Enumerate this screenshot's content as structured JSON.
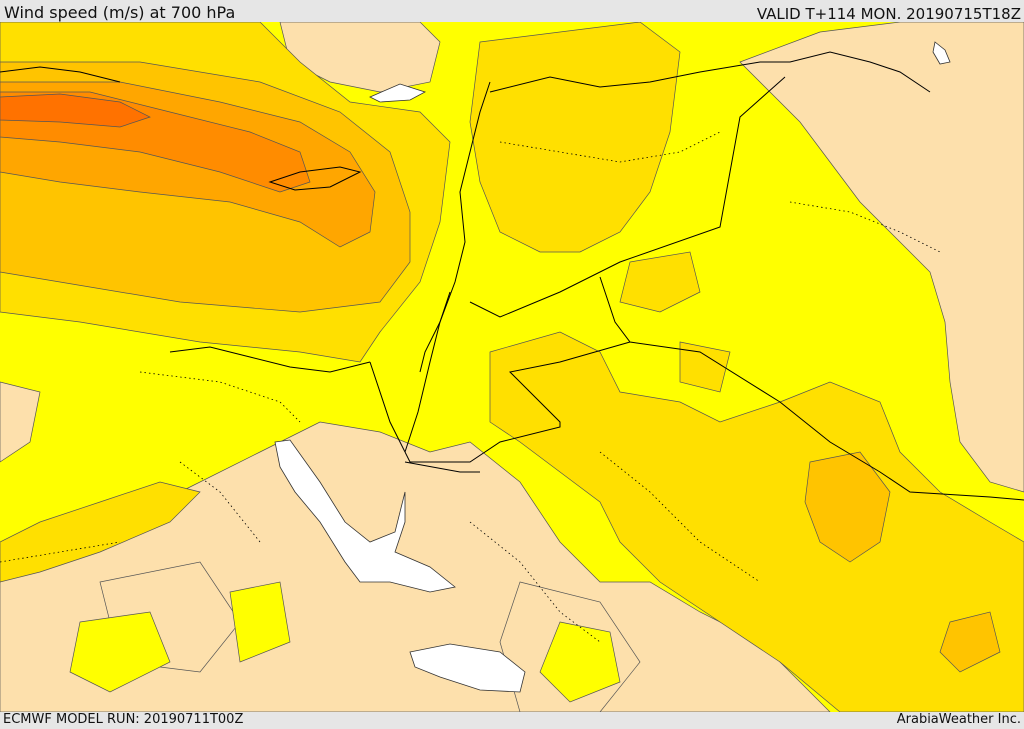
{
  "header": {
    "title": "Wind speed (m/s) at 700 hPa",
    "valid": "VALID T+114 MON. 20190715T18Z"
  },
  "footer": {
    "model_run": "ECMWF MODEL RUN: 20190711T00Z",
    "credit": "ArabiaWeather Inc."
  },
  "map": {
    "field": "wind_speed_700hPa",
    "units": "m/s",
    "fill_levels": [
      {
        "level": "lowest",
        "color": "#fde0ac"
      },
      {
        "level": "low",
        "color": "#ffff00"
      },
      {
        "level": "moderate",
        "color": "#ffe000"
      },
      {
        "level": "elevated",
        "color": "#ffc400"
      },
      {
        "level": "high",
        "color": "#ffa600"
      },
      {
        "level": "higher",
        "color": "#ff8c00"
      },
      {
        "level": "highest",
        "color": "#ff7200"
      }
    ],
    "water_color": "#ffffff",
    "boundary_color": "#000000"
  }
}
